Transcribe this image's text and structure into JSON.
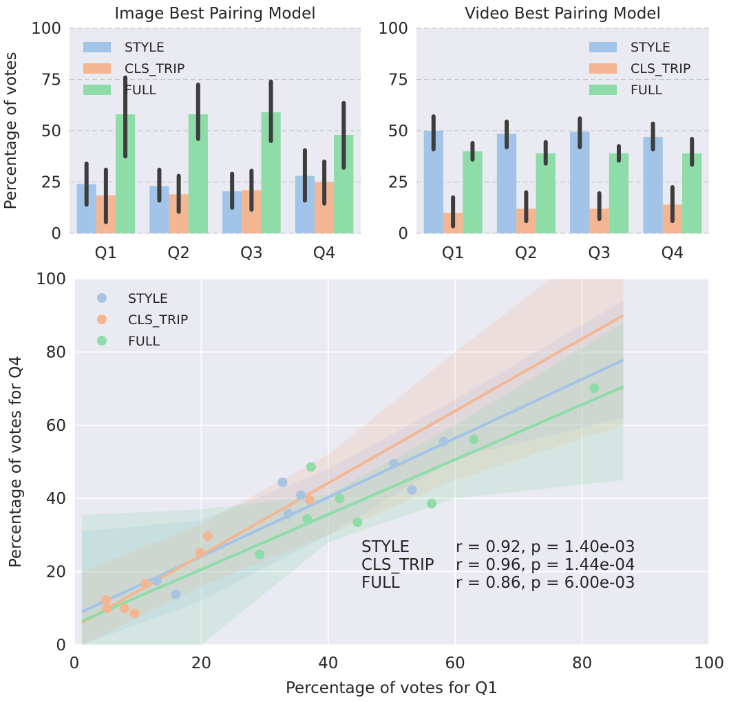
{
  "chart_data": [
    {
      "type": "bar",
      "title": "Image Best Pairing Model",
      "xlabel": "",
      "ylabel": "Percentage of votes",
      "ylim": [
        0,
        100
      ],
      "yticks": [
        0,
        25,
        50,
        75,
        100
      ],
      "grid": "horizontal-dashed",
      "legend_position": "top-left",
      "categories": [
        "Q1",
        "Q2",
        "Q3",
        "Q4"
      ],
      "series": [
        {
          "name": "STYLE",
          "color": "#a1c4e8",
          "values": [
            24,
            23,
            20.5,
            28
          ],
          "ci_low": [
            14,
            16,
            12.5,
            16
          ],
          "ci_high": [
            34,
            31,
            29,
            40.5
          ]
        },
        {
          "name": "CLS_TRIP",
          "color": "#f4b692",
          "values": [
            18.5,
            19,
            21,
            25
          ],
          "ci_low": [
            5.5,
            10.5,
            11.5,
            14.5
          ],
          "ci_high": [
            31,
            28,
            30.5,
            35
          ]
        },
        {
          "name": "FULL",
          "color": "#8edca8",
          "values": [
            58,
            58,
            59,
            48
          ],
          "ci_low": [
            37.5,
            46,
            45,
            32
          ],
          "ci_high": [
            76,
            72.5,
            74,
            63.5
          ]
        }
      ]
    },
    {
      "type": "bar",
      "title": "Video Best Pairing Model",
      "xlabel": "",
      "ylabel": "",
      "ylim": [
        0,
        100
      ],
      "yticks": [
        0,
        25,
        50,
        75,
        100
      ],
      "grid": "horizontal-dashed",
      "legend_position": "top-right",
      "categories": [
        "Q1",
        "Q2",
        "Q3",
        "Q4"
      ],
      "series": [
        {
          "name": "STYLE",
          "color": "#a1c4e8",
          "values": [
            50,
            48.5,
            49.5,
            47
          ],
          "ci_low": [
            41,
            42,
            42,
            41
          ],
          "ci_high": [
            57,
            54.5,
            56,
            53.5
          ]
        },
        {
          "name": "CLS_TRIP",
          "color": "#f4b692",
          "values": [
            10,
            12,
            12,
            14
          ],
          "ci_low": [
            3.5,
            6,
            7,
            6
          ],
          "ci_high": [
            17.5,
            20,
            19.5,
            22.5
          ]
        },
        {
          "name": "FULL",
          "color": "#8edca8",
          "values": [
            40,
            39,
            39,
            39
          ],
          "ci_low": [
            36,
            34,
            35.5,
            33.5
          ],
          "ci_high": [
            44,
            44.5,
            42.5,
            46
          ]
        }
      ]
    },
    {
      "type": "scatter",
      "title": "",
      "xlabel": "Percentage of votes for Q1",
      "ylabel": "Percentage of votes for Q4",
      "xlim": [
        0,
        100
      ],
      "ylim": [
        0,
        100
      ],
      "xticks": [
        0,
        20,
        40,
        60,
        80,
        100
      ],
      "yticks": [
        0,
        20,
        40,
        60,
        80,
        100
      ],
      "grid": "solid",
      "legend_position": "top-left",
      "series": [
        {
          "name": "STYLE",
          "color": "#a1c4e8",
          "dot_color": "#a9c3e3",
          "line_color": "#a1c4e8",
          "x": [
            16,
            32.8,
            33.7,
            35.7,
            50.3,
            53.2,
            58.2,
            13
          ],
          "y": [
            13.8,
            44.4,
            35.8,
            40.9,
            49.5,
            42.3,
            55.5,
            17.5
          ],
          "fit": {
            "x": [
              1.2,
              86.5
            ],
            "y": [
              9,
              77.8
            ]
          },
          "band_upper": [
            [
              1.2,
              31
            ],
            [
              20,
              34
            ],
            [
              40,
              48
            ],
            [
              60,
              67
            ],
            [
              86.5,
              94
            ]
          ],
          "band_lower": [
            [
              1.2,
              0
            ],
            [
              20,
              12
            ],
            [
              40,
              30
            ],
            [
              60,
              51
            ],
            [
              86.5,
              62
            ]
          ]
        },
        {
          "name": "CLS_TRIP",
          "color": "#f4b692",
          "dot_color": "#f4b692",
          "line_color": "#f4b692",
          "x": [
            5,
            5.2,
            7.9,
            9.5,
            11.2,
            19.8,
            21,
            37.1
          ],
          "y": [
            12.3,
            10,
            10,
            8.6,
            16.7,
            25.2,
            29.7,
            39.6
          ],
          "fit": {
            "x": [
              1.2,
              86.5
            ],
            "y": [
              6,
              90
            ]
          },
          "band_upper": [
            [
              1.2,
              20
            ],
            [
              20,
              33
            ],
            [
              40,
              52
            ],
            [
              60,
              80
            ],
            [
              75,
              100
            ],
            [
              86.5,
              100
            ]
          ],
          "band_lower": [
            [
              1.2,
              0
            ],
            [
              20,
              16
            ],
            [
              40,
              30
            ],
            [
              60,
              45
            ],
            [
              86.5,
              60
            ]
          ]
        },
        {
          "name": "FULL",
          "color": "#8edca8",
          "dot_color": "#8edca8",
          "line_color": "#8edca8",
          "x": [
            29.2,
            36.7,
            37.3,
            41.8,
            44.6,
            56.3,
            62.9,
            81.9
          ],
          "y": [
            24.7,
            34.4,
            48.6,
            40,
            33.5,
            38.6,
            56.1,
            70.1
          ],
          "fit": {
            "x": [
              1.2,
              86.5
            ],
            "y": [
              6.5,
              70.5
            ]
          },
          "band_upper": [
            [
              1.2,
              35.5
            ],
            [
              20,
              37
            ],
            [
              40,
              41
            ],
            [
              60,
              60
            ],
            [
              86.5,
              88
            ]
          ],
          "band_lower": [
            [
              1.2,
              0
            ],
            [
              20,
              0
            ],
            [
              40,
              28
            ],
            [
              60,
              40
            ],
            [
              86.5,
              45
            ]
          ]
        }
      ],
      "annotations": [
        {
          "name": "STYLE",
          "stat": "r = 0.92, p = 1.40e-03"
        },
        {
          "name": "CLS_TRIP",
          "stat": "r = 0.96, p = 1.44e-04"
        },
        {
          "name": "FULL",
          "stat": "r = 0.86, p = 6.00e-03"
        }
      ]
    }
  ]
}
